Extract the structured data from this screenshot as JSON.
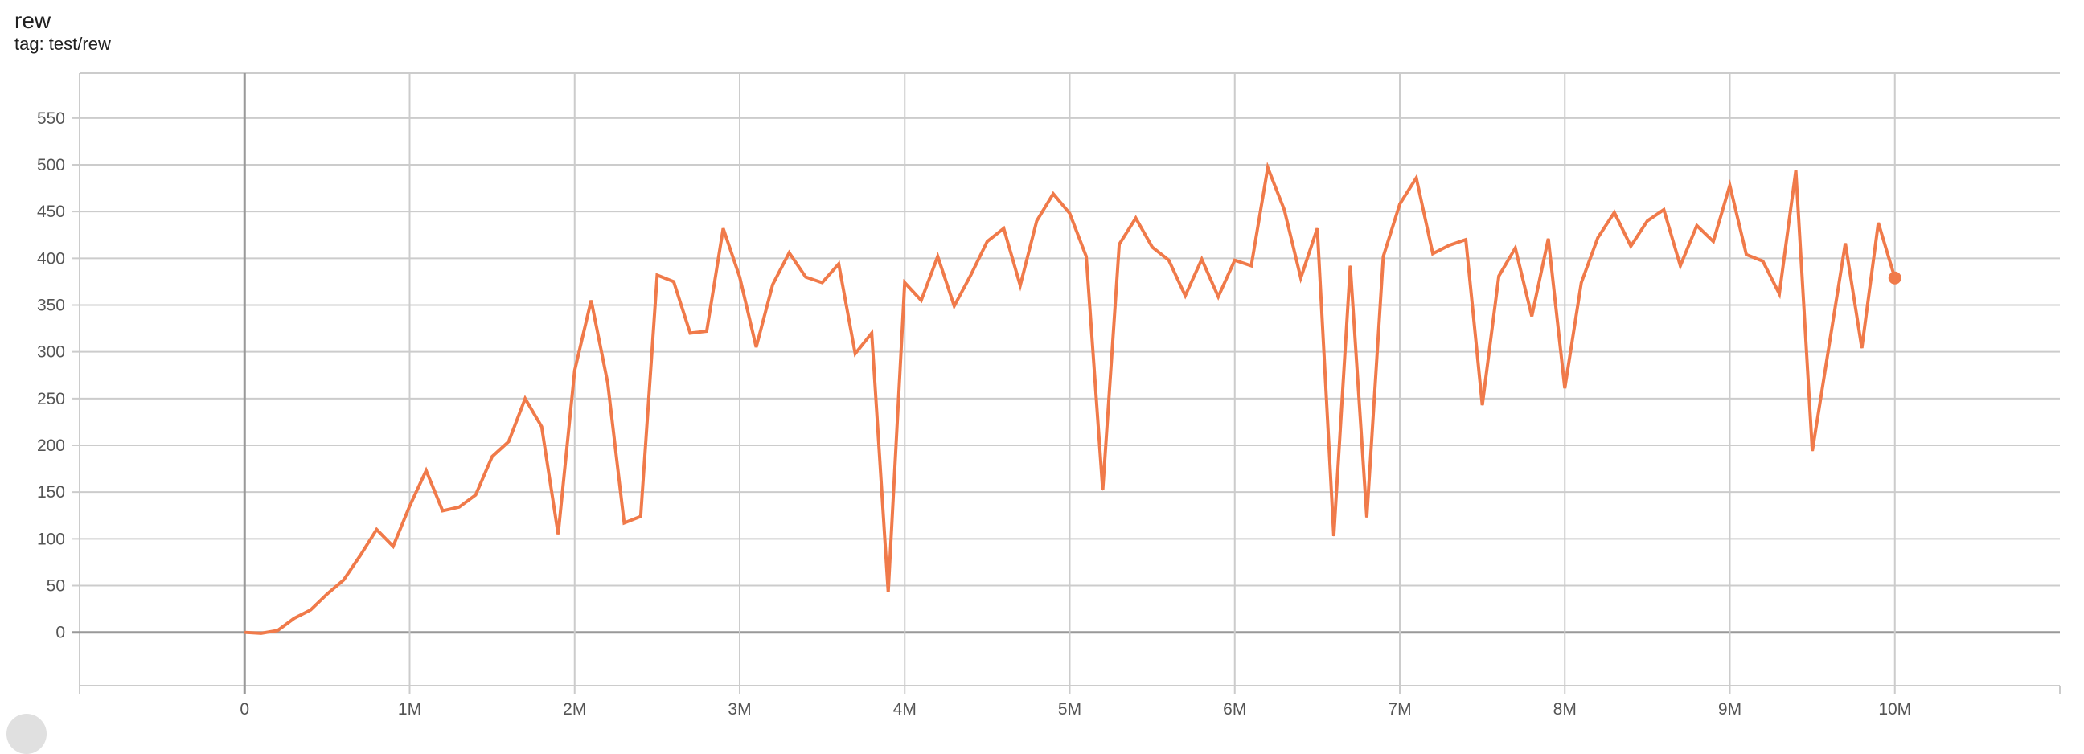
{
  "card": {
    "title": "rew",
    "subtitle": "tag: test/rew"
  },
  "chart_data": {
    "type": "line",
    "title": "rew",
    "xlabel": "",
    "ylabel": "",
    "xlim": [
      -1000000,
      11000000
    ],
    "ylim": [
      -57,
      598
    ],
    "grid": true,
    "x_ticks": [
      0,
      1000000,
      2000000,
      3000000,
      4000000,
      5000000,
      6000000,
      7000000,
      8000000,
      9000000,
      10000000
    ],
    "x_tick_labels": [
      "0",
      "1M",
      "2M",
      "3M",
      "4M",
      "5M",
      "6M",
      "7M",
      "8M",
      "9M",
      "10M"
    ],
    "y_ticks": [
      0,
      50,
      100,
      150,
      200,
      250,
      300,
      350,
      400,
      450,
      500,
      550
    ],
    "y_tick_labels": [
      "0",
      "50",
      "100",
      "150",
      "200",
      "250",
      "300",
      "350",
      "400",
      "450",
      "500",
      "550"
    ],
    "color": "#f07a4a",
    "x_step": 100000,
    "values": [
      0,
      -1,
      2,
      15,
      24,
      41,
      56,
      82,
      110,
      92,
      135,
      173,
      130,
      134,
      147,
      188,
      204,
      250,
      220,
      105,
      280,
      355,
      267,
      117,
      124,
      382,
      375,
      320,
      322,
      432,
      380,
      305,
      372,
      406,
      380,
      374,
      394,
      298,
      320,
      43,
      374,
      355,
      402,
      349,
      382,
      418,
      432,
      371,
      440,
      469,
      448,
      402,
      152,
      415,
      443,
      412,
      398,
      360,
      399,
      359,
      398,
      392,
      497,
      452,
      379,
      432,
      103,
      392,
      123,
      402,
      458,
      486,
      405,
      414,
      420,
      243,
      381,
      411,
      338,
      421,
      261,
      374,
      422,
      449,
      413,
      440,
      452,
      392,
      435,
      418,
      478,
      404,
      397,
      362,
      494,
      194,
      305,
      416,
      304,
      438,
      379
    ]
  }
}
